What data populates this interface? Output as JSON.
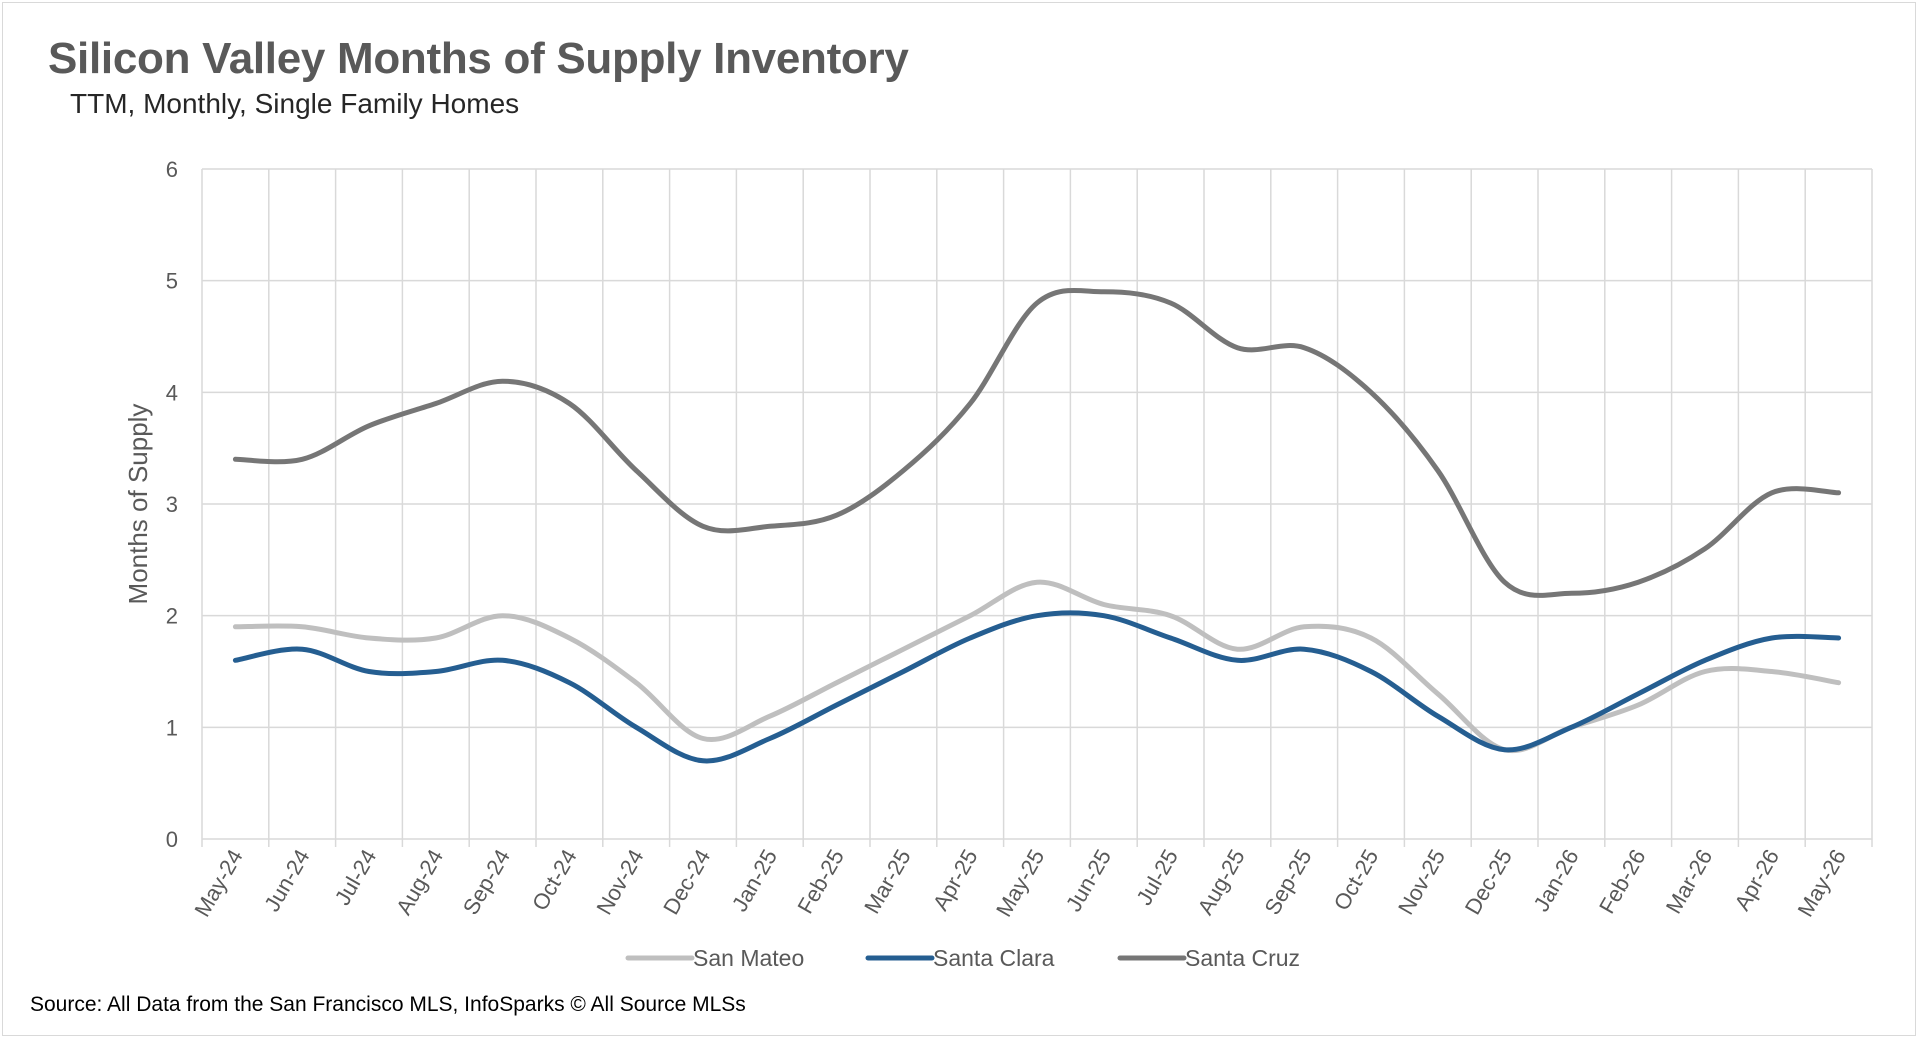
{
  "title": "Silicon Valley Months of Supply Inventory",
  "subtitle": "TTM, Monthly, Single Family Homes",
  "source": "Source: All Data from the San Francisco MLS, InfoSparks © All Source MLSs",
  "chart_data": {
    "type": "line",
    "title": "Silicon Valley Months of Supply Inventory",
    "subtitle": "TTM, Monthly, Single Family Homes",
    "xlabel": "",
    "ylabel": "Months of Supply",
    "ylim": [
      0,
      6
    ],
    "yticks": [
      0,
      1,
      2,
      3,
      4,
      5,
      6
    ],
    "grid": true,
    "legend_position": "bottom",
    "smooth": true,
    "categories": [
      "May-24",
      "Jun-24",
      "Jul-24",
      "Aug-24",
      "Sep-24",
      "Oct-24",
      "Nov-24",
      "Dec-24",
      "Jan-25",
      "Feb-25",
      "Mar-25",
      "Apr-25",
      "May-25",
      "Jun-25",
      "Jul-25",
      "Aug-25",
      "Sep-25",
      "Oct-25",
      "Nov-25",
      "Dec-25",
      "Jan-26",
      "Feb-26",
      "Mar-26",
      "Apr-26",
      "May-26"
    ],
    "series": [
      {
        "name": "San Mateo",
        "color": "#bfbfbf",
        "values": [
          1.9,
          1.9,
          1.8,
          1.8,
          2.0,
          1.8,
          1.4,
          0.9,
          1.1,
          1.4,
          1.7,
          2.0,
          2.3,
          2.1,
          2.0,
          1.7,
          1.9,
          1.8,
          1.3,
          0.8,
          1.0,
          1.2,
          1.5,
          1.5,
          1.4
        ]
      },
      {
        "name": "Santa Clara",
        "color": "#255e91",
        "values": [
          1.6,
          1.7,
          1.5,
          1.5,
          1.6,
          1.4,
          1.0,
          0.7,
          0.9,
          1.2,
          1.5,
          1.8,
          2.0,
          2.0,
          1.8,
          1.6,
          1.7,
          1.5,
          1.1,
          0.8,
          1.0,
          1.3,
          1.6,
          1.8,
          1.8
        ]
      },
      {
        "name": "Santa Cruz",
        "color": "#767676",
        "values": [
          3.4,
          3.4,
          3.7,
          3.9,
          4.1,
          3.9,
          3.3,
          2.8,
          2.8,
          2.9,
          3.3,
          3.9,
          4.8,
          4.9,
          4.8,
          4.4,
          4.4,
          4.0,
          3.3,
          2.3,
          2.2,
          2.3,
          2.6,
          3.1,
          3.1
        ]
      }
    ]
  }
}
